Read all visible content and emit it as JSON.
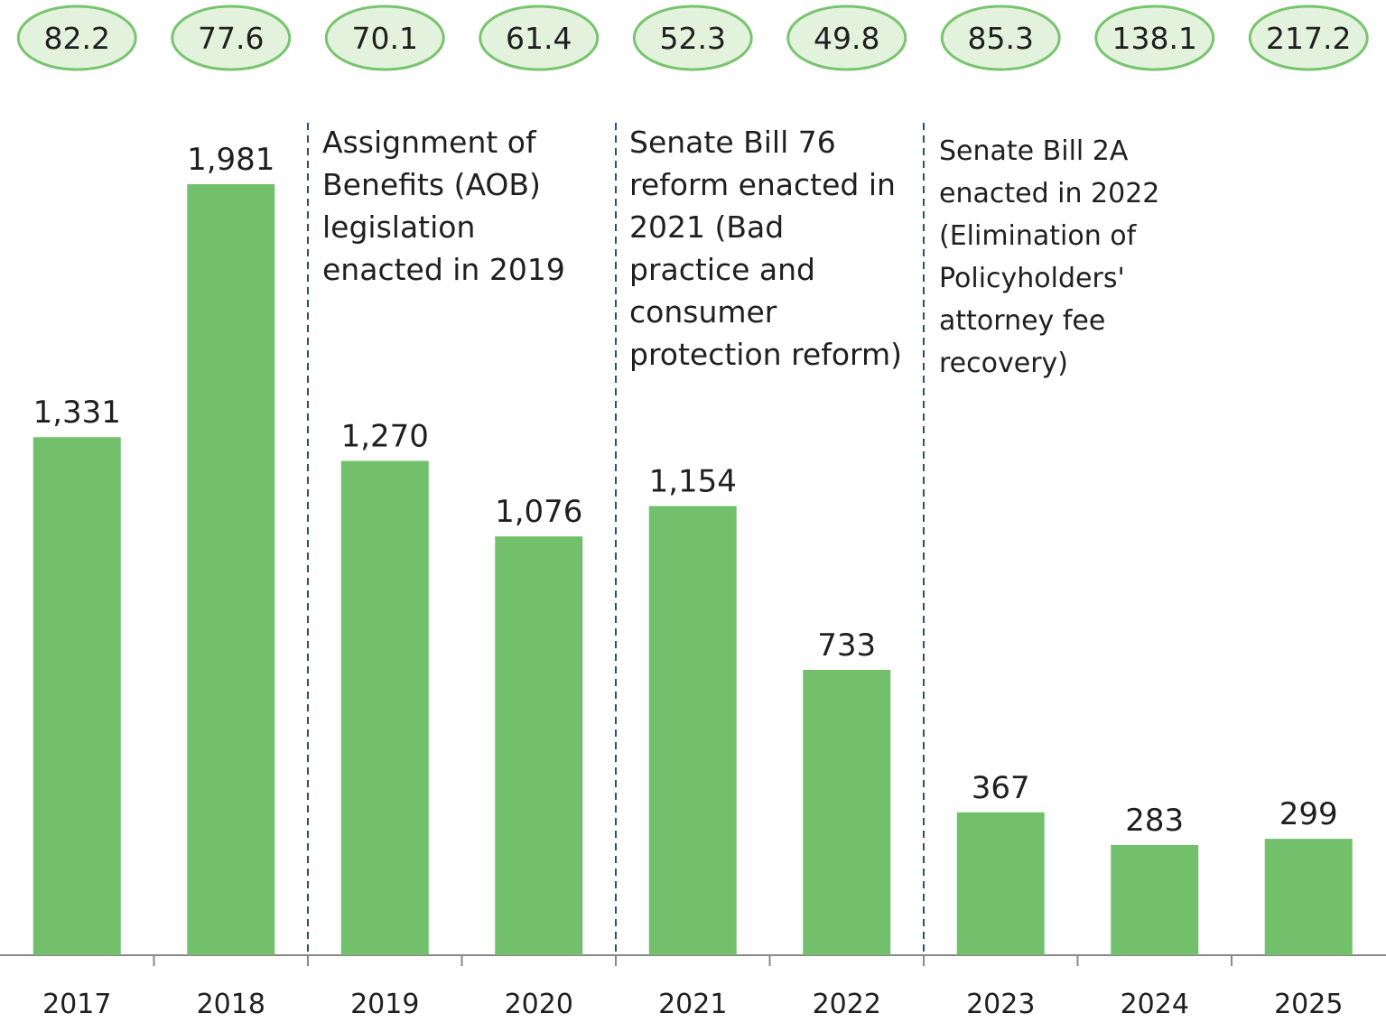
{
  "chart_data": {
    "type": "bar",
    "categories": [
      "2017",
      "2018",
      "2019",
      "2020",
      "2021",
      "2022",
      "2023",
      "2024",
      "2025"
    ],
    "values": [
      1331,
      1981,
      1270,
      1076,
      1154,
      733,
      367,
      283,
      299
    ],
    "value_labels": [
      "1,331",
      "1,981",
      "1,270",
      "1,076",
      "1,154",
      "733",
      "367",
      "283",
      "299"
    ],
    "top_values": [
      "82.2",
      "77.6",
      "70.1",
      "61.4",
      "52.3",
      "49.8",
      "85.3",
      "138.1",
      "217.2"
    ],
    "ylim": [
      0,
      2050
    ],
    "grid": false,
    "annotations": [
      {
        "after_category": "2018",
        "text": "Assignment of\nBenefits (AOB)\nlegislation\nenacted in 2019"
      },
      {
        "after_category": "2020",
        "text": "Senate Bill 76\nreform enacted in\n2021 (Bad\npractice and\nconsumer\nprotection reform)"
      },
      {
        "after_category": "2022",
        "text": "Senate Bill 2A\nenacted in 2022\n(Elimination of\nPolicyholders'\nattorney fee\nrecovery)"
      }
    ]
  },
  "colors": {
    "bar": "#72c06b",
    "oval_fill": "#e3f2dd",
    "oval_stroke": "#79c46f",
    "divider": "#2f4f6f",
    "axis": "#888888",
    "text": "#1f1f1f"
  }
}
